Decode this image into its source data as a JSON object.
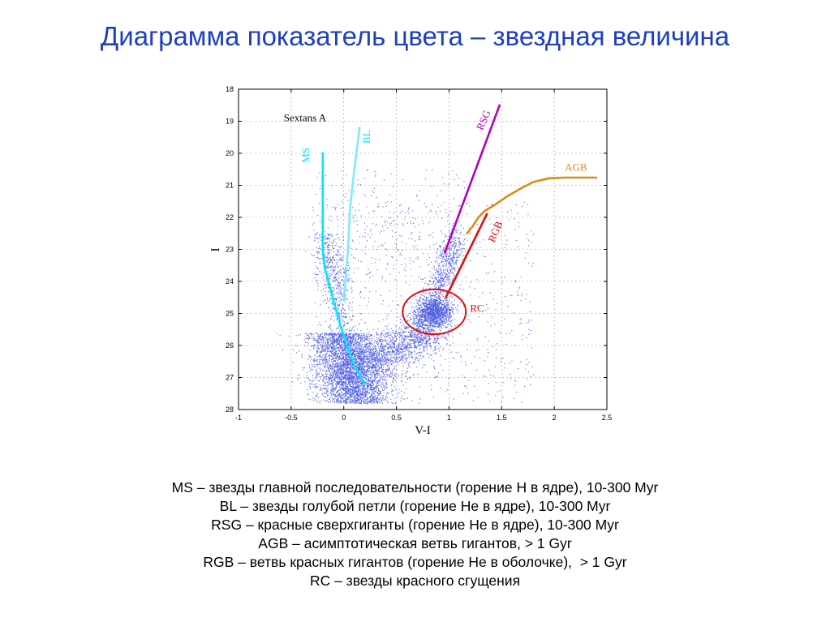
{
  "slide": {
    "title": "Диаграмма показатель цвета – звездная величина"
  },
  "legend_lines": [
    "MS – звезды главной последовательности (горение Н в ядре), 10-300 Myr",
    "BL – звезды голубой петли (горение He в ядре), 10-300 Myr",
    "RSG – красные сверхгиганты (горение He в ядре), 10-300 Myr",
    "AGB – асимптотическая ветвь гигантов, > 1 Gyr",
    "RGB – ветвь красных гигантов (горение He в оболочке),  > 1 Gyr",
    "RC – звезды красного сгущения"
  ],
  "chart_data": {
    "type": "scatter",
    "title": "Sextans A",
    "xlabel": "V-I",
    "ylabel": "I",
    "xlim": [
      -1,
      2.5
    ],
    "ylim": [
      28,
      18
    ],
    "y_inverted": true,
    "x_ticks": [
      "-1",
      "-0.5",
      "0",
      "0.5",
      "1",
      "1.5",
      "2",
      "2.5"
    ],
    "y_ticks": [
      "18",
      "19",
      "20",
      "21",
      "22",
      "23",
      "24",
      "25",
      "26",
      "27",
      "28"
    ],
    "point_color": "#1a2fd8",
    "sequences": [
      {
        "name": "MS",
        "color": "#00e5ff",
        "points": [
          [
            -0.2,
            20.0
          ],
          [
            -0.2,
            21.0
          ],
          [
            -0.2,
            22.0
          ],
          [
            -0.2,
            23.0
          ],
          [
            -0.18,
            23.6
          ],
          [
            -0.13,
            24.2
          ],
          [
            -0.08,
            24.8
          ],
          [
            -0.03,
            25.4
          ],
          [
            0.03,
            26.0
          ],
          [
            0.1,
            26.6
          ],
          [
            0.2,
            27.2
          ]
        ]
      },
      {
        "name": "BL",
        "color": "#7fe9ff",
        "points": [
          [
            0.15,
            19.2
          ],
          [
            0.1,
            20.5
          ],
          [
            0.06,
            21.7
          ],
          [
            0.04,
            23.0
          ],
          [
            0.0,
            24.6
          ]
        ]
      },
      {
        "name": "RSG",
        "color": "#b000c0",
        "points": [
          [
            0.96,
            23.1
          ],
          [
            1.48,
            18.5
          ]
        ]
      },
      {
        "name": "AGB",
        "color": "#d98b1c",
        "points": [
          [
            1.17,
            22.5
          ],
          [
            1.22,
            22.3
          ],
          [
            1.28,
            22.0
          ],
          [
            1.34,
            21.8
          ],
          [
            1.44,
            21.6
          ],
          [
            1.55,
            21.35
          ],
          [
            1.68,
            21.1
          ],
          [
            1.8,
            20.9
          ],
          [
            1.95,
            20.78
          ],
          [
            2.1,
            20.76
          ],
          [
            2.4,
            20.76
          ]
        ]
      },
      {
        "name": "RGB",
        "color": "#e01010",
        "points": [
          [
            0.97,
            24.5
          ],
          [
            1.36,
            21.9
          ]
        ]
      }
    ],
    "clusters": [
      {
        "name": "RC",
        "color": "#e01010",
        "center": [
          0.86,
          24.95
        ],
        "rx": 0.3,
        "ry": 0.7
      }
    ],
    "labels": [
      {
        "text": "Sextans A",
        "x": -0.57,
        "y": 19.0,
        "color": "#000000",
        "rotate": 0
      },
      {
        "text": "MS",
        "x": -0.33,
        "y": 20.3,
        "color": "#00e5ff",
        "rotate": -90
      },
      {
        "text": "BL",
        "x": 0.25,
        "y": 19.7,
        "color": "#00e5ff",
        "rotate": -90
      },
      {
        "text": "RSG",
        "x": 1.32,
        "y": 19.3,
        "color": "#b000c0",
        "rotate": -67
      },
      {
        "text": "AGB",
        "x": 2.1,
        "y": 20.55,
        "color": "#d98b1c",
        "rotate": 0
      },
      {
        "text": "RGB",
        "x": 1.43,
        "y": 22.8,
        "color": "#e01010",
        "rotate": -67
      },
      {
        "text": "RC",
        "x": 1.2,
        "y": 24.95,
        "color": "#e01010",
        "rotate": 0
      }
    ]
  }
}
